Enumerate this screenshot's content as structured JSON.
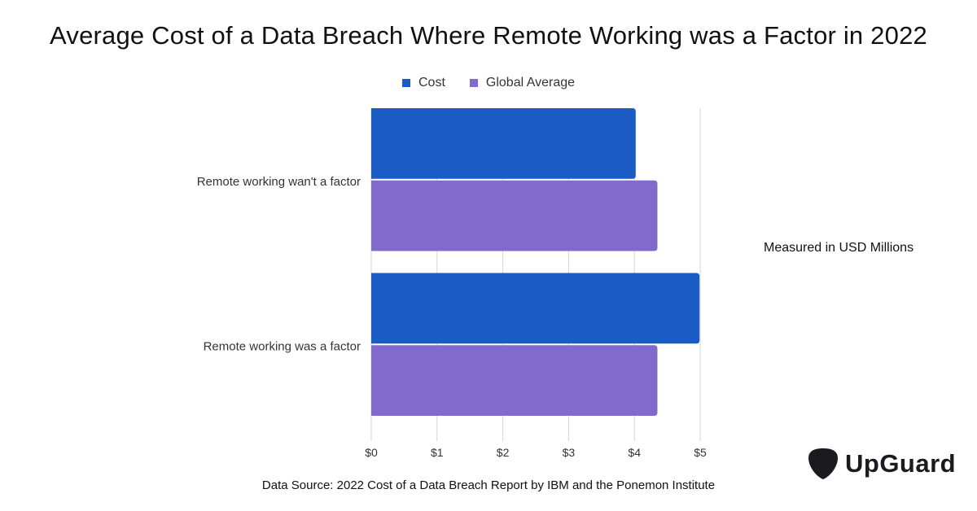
{
  "title": "Average Cost of a Data Breach Where Remote Working was a Factor in 2022",
  "unit_note": "Measured in USD Millions",
  "source": "Data Source: 2022 Cost of a Data Breach Report by IBM and the Ponemon Institute",
  "logo": {
    "text": "UpGuard",
    "icon": "guitar-pick-shield-icon"
  },
  "colors": {
    "cost": "#1a5bc4",
    "global_average": "#806bcc",
    "grid": "#d6d6d6"
  },
  "chart_data": {
    "type": "bar",
    "orientation": "horizontal",
    "categories": [
      "Remote working wan't a factor",
      "Remote working was a factor"
    ],
    "series": [
      {
        "name": "Cost",
        "values": [
          4.02,
          4.99
        ]
      },
      {
        "name": "Global Average",
        "values": [
          4.35,
          4.35
        ]
      }
    ],
    "x_ticks": [
      "$0",
      "$1",
      "$2",
      "$3",
      "$4",
      "$5"
    ],
    "xlim": [
      0,
      5
    ],
    "grid": true,
    "legend_position": "top-center"
  }
}
